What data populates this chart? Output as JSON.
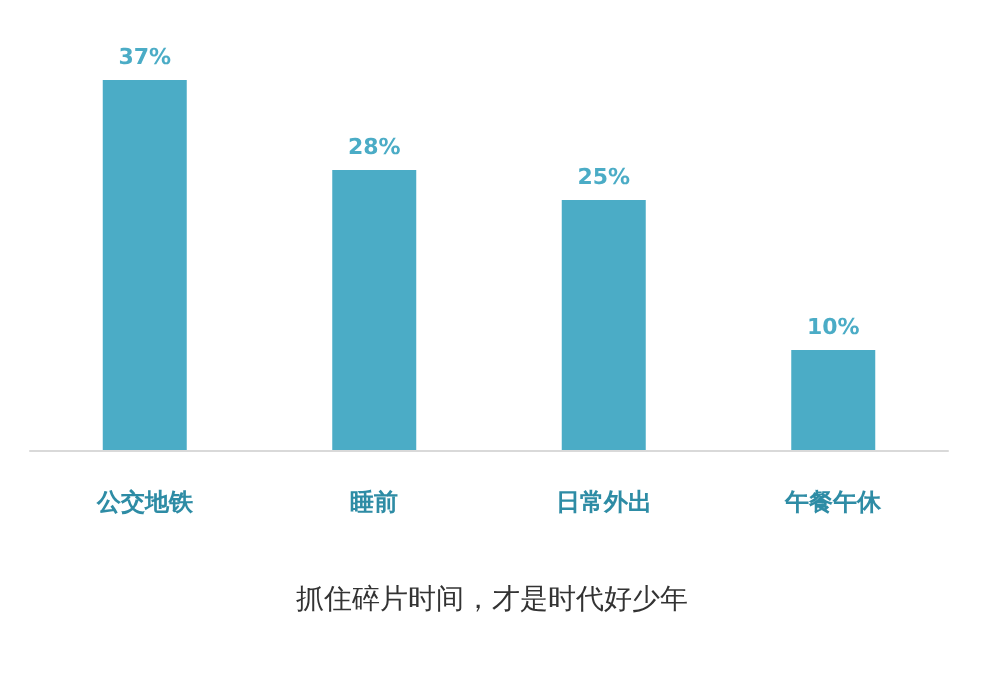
{
  "chart_data": {
    "type": "bar",
    "title": "抓住碎片时间，才是时代好少年",
    "categories": [
      "公交地铁",
      "睡前",
      "日常外出",
      "午餐午休"
    ],
    "values": [
      37,
      28,
      25,
      10
    ],
    "value_labels": [
      "37%",
      "28%",
      "25%",
      "10%"
    ],
    "color": "#4bacc6"
  }
}
